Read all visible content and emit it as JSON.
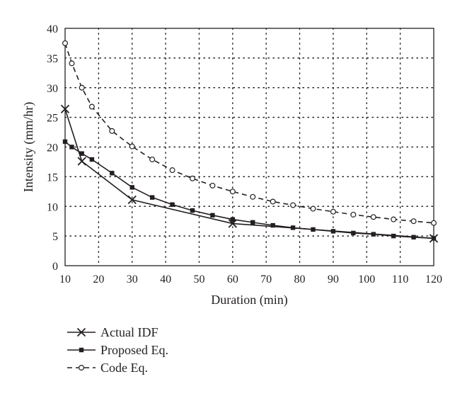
{
  "chart_data": {
    "type": "line",
    "title": "",
    "xlabel": "Duration (min)",
    "ylabel": "Intensity (mm/hr)",
    "xlim": [
      10,
      120
    ],
    "ylim": [
      0,
      40
    ],
    "xticks": [
      10,
      20,
      30,
      40,
      50,
      60,
      70,
      80,
      90,
      100,
      110,
      120
    ],
    "yticks": [
      0,
      5,
      10,
      15,
      20,
      25,
      30,
      35,
      40
    ],
    "grid": "dotted",
    "legend_position": "below",
    "series": [
      {
        "name": "Actual IDF",
        "marker": "x",
        "line": "solid",
        "color": "#231f20",
        "x": [
          10,
          15,
          30,
          60,
          120
        ],
        "y": [
          26.4,
          17.6,
          11.1,
          7.1,
          4.6
        ]
      },
      {
        "name": "Proposed Eq.",
        "marker": "square",
        "line": "solid",
        "color": "#231f20",
        "x": [
          10,
          12,
          15,
          18,
          24,
          30,
          36,
          42,
          48,
          54,
          60,
          66,
          72,
          78,
          84,
          90,
          96,
          102,
          108,
          114,
          120
        ],
        "y": [
          20.9,
          20.0,
          18.9,
          17.9,
          15.6,
          13.2,
          11.5,
          10.3,
          9.3,
          8.5,
          7.8,
          7.3,
          6.8,
          6.4,
          6.1,
          5.8,
          5.5,
          5.3,
          5.0,
          4.8,
          4.6
        ]
      },
      {
        "name": "Code Eq.",
        "marker": "circle",
        "line": "dashed",
        "color": "#231f20",
        "x": [
          10,
          12,
          15,
          18,
          24,
          30,
          36,
          42,
          48,
          54,
          60,
          66,
          72,
          78,
          84,
          90,
          96,
          102,
          108,
          114,
          120
        ],
        "y": [
          37.5,
          34.1,
          30.0,
          26.8,
          22.7,
          20.1,
          17.9,
          16.1,
          14.7,
          13.5,
          12.5,
          11.6,
          10.8,
          10.2,
          9.6,
          9.1,
          8.6,
          8.2,
          7.8,
          7.5,
          7.2
        ]
      }
    ]
  }
}
